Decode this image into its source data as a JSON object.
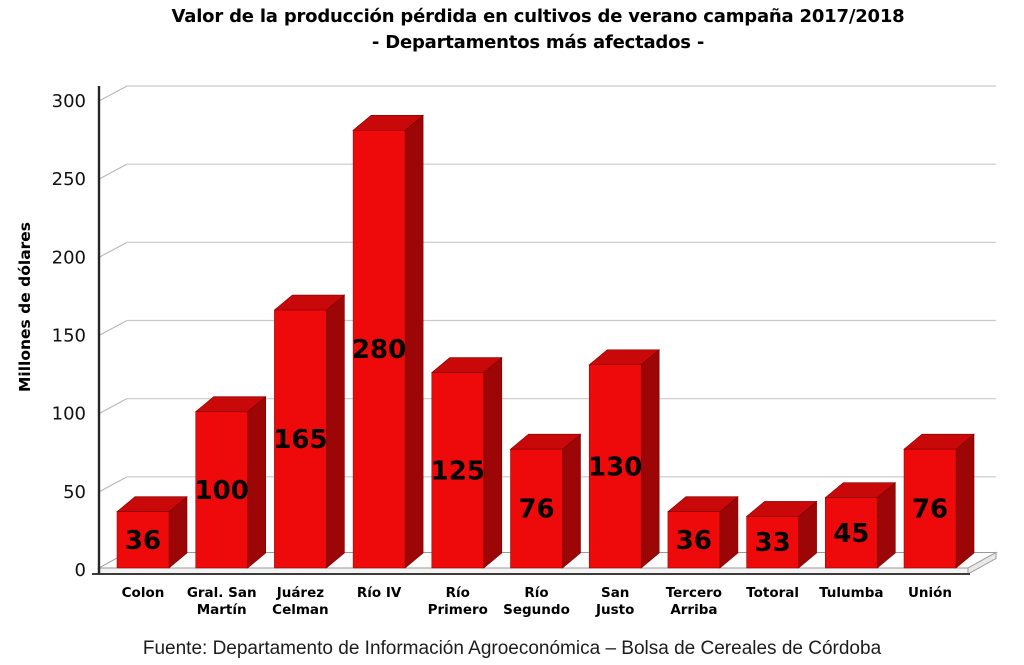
{
  "chart_data": {
    "type": "bar",
    "style": "3d-column",
    "title": "Valor de la producción pérdida en cultivos de verano campaña 2017/2018",
    "subtitle": "- Departamentos más afectados -",
    "ylabel": "Millones de dólares",
    "xlabel": "",
    "categories": [
      "Colon",
      "Gral. San Martín",
      "Juárez Celman",
      "Río IV",
      "Río Primero",
      "Río Segundo",
      "San Justo",
      "Tercero Arriba",
      "Totoral",
      "Tulumba",
      "Unión"
    ],
    "values": [
      36,
      100,
      165,
      280,
      125,
      76,
      130,
      36,
      33,
      45,
      76
    ],
    "ylim": [
      0,
      300
    ],
    "yticks": [
      0,
      50,
      100,
      150,
      200,
      250,
      300
    ],
    "grid": true,
    "legend": false,
    "data_labels": true,
    "colors": {
      "bar_front": "#ee0a0a",
      "bar_top": "#c90909",
      "bar_side": "#9d0606",
      "bar_edge": "#7a0000",
      "gridline": "#c9c9c9",
      "axis": "#262626",
      "label_text": "#000000"
    }
  },
  "footer": {
    "source": "Fuente: Departamento de Información Agroeconómica – Bolsa de Cereales de Córdoba"
  }
}
